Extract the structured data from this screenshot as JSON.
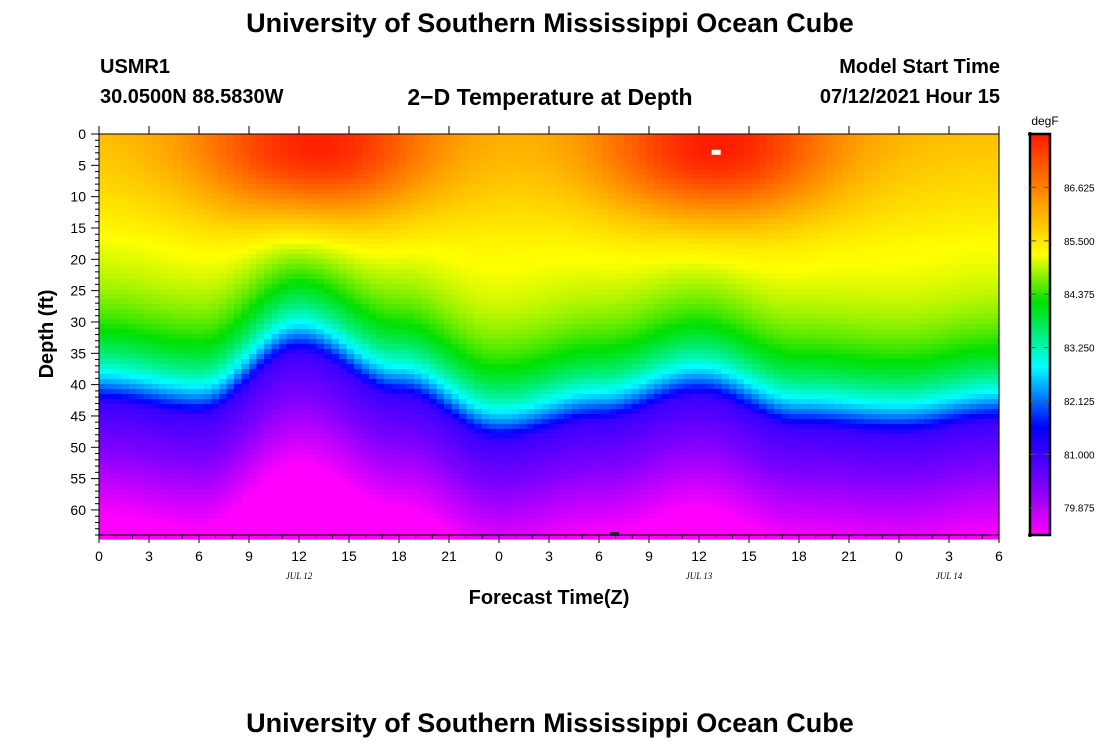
{
  "header": {
    "title": "University of Southern Mississippi Ocean Cube",
    "station": "USMR1",
    "coordinates": "30.0500N  88.5830W",
    "plot_title": "2−D Temperature at Depth",
    "model_start_label": "Model Start Time",
    "model_start_value": "07/12/2021 Hour 15"
  },
  "footer": {
    "title": "University of Southern Mississippi Ocean Cube"
  },
  "chart_data": {
    "type": "heatmap",
    "title": "2−D Temperature at Depth",
    "xlabel": "Forecast Time(Z)",
    "ylabel": "Depth (ft)",
    "x_hours_range": [
      0,
      54
    ],
    "x_ticks": [
      "0",
      "3",
      "6",
      "9",
      "12",
      "15",
      "18",
      "21",
      "0",
      "3",
      "6",
      "9",
      "12",
      "15",
      "18",
      "21",
      "0",
      "3",
      "6"
    ],
    "date_labels": [
      {
        "label": "JUL 12",
        "hour": 12
      },
      {
        "label": "JUL 13",
        "hour": 36
      },
      {
        "label": "JUL 14",
        "hour": 51
      }
    ],
    "y_range": [
      0,
      64
    ],
    "y_ticks": [
      "0",
      "5",
      "10",
      "15",
      "20",
      "25",
      "30",
      "35",
      "40",
      "45",
      "50",
      "55",
      "60"
    ],
    "colorbar": {
      "unit": "degF",
      "range": [
        79.3,
        87.75
      ],
      "tick_labels": [
        "86.625",
        "85.500",
        "84.375",
        "83.250",
        "82.125",
        "81.000",
        "79.875"
      ],
      "tick_values": [
        86.625,
        85.5,
        84.375,
        83.25,
        82.125,
        81.0,
        79.875
      ]
    },
    "isotherm_81F_depth_ft": [
      {
        "hour": 0,
        "depth": 43
      },
      {
        "hour": 6,
        "depth": 45
      },
      {
        "hour": 12,
        "depth": 35
      },
      {
        "hour": 18,
        "depth": 42
      },
      {
        "hour": 24,
        "depth": 49
      },
      {
        "hour": 30,
        "depth": 46
      },
      {
        "hour": 36,
        "depth": 42
      },
      {
        "hour": 42,
        "depth": 47
      },
      {
        "hour": 48,
        "depth": 48
      },
      {
        "hour": 54,
        "depth": 46
      }
    ],
    "surface_warm_maxima": [
      {
        "hour": 13,
        "depth": 3,
        "temp": 87.6
      },
      {
        "hour": 37,
        "depth": 3,
        "temp": 87.6
      }
    ],
    "colors": {
      "cold": "#ff00ff",
      "warm": "#ff1a00"
    }
  }
}
